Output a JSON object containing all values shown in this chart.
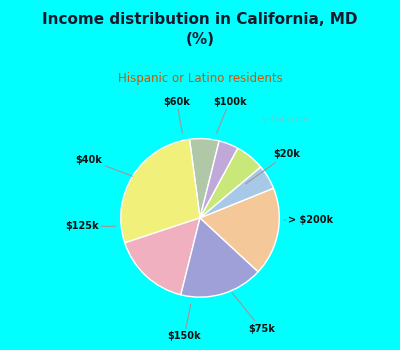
{
  "title": "Income distribution in California, MD\n(%)",
  "subtitle": "Hispanic or Latino residents",
  "labels": [
    "$20k",
    "> $200k",
    "$75k",
    "$150k",
    "$125k",
    "$40k",
    "$60k",
    "$100k"
  ],
  "values": [
    6,
    28,
    16,
    17,
    18,
    5,
    6,
    4
  ],
  "colors": [
    "#b0c8a8",
    "#f0f07a",
    "#f0b0c0",
    "#a0a0d8",
    "#f5c89a",
    "#a8c8e8",
    "#c8e87a",
    "#c0a8d8"
  ],
  "bg_color": "#00ffff",
  "chart_bg_color": "#e8f8f0",
  "title_color": "#1a1a2e",
  "subtitle_color": "#cc5500",
  "startangle": 76,
  "figsize": [
    4.0,
    3.5
  ],
  "dpi": 100,
  "label_data": {
    "$20k": {
      "lpos": [
        0.82,
        0.6
      ],
      "epos": [
        0.4,
        0.3
      ]
    },
    "> $200k": {
      "lpos": [
        1.05,
        -0.02
      ],
      "epos": [
        0.75,
        -0.02
      ]
    },
    "$75k": {
      "lpos": [
        0.58,
        -1.05
      ],
      "epos": [
        0.28,
        -0.68
      ]
    },
    "$150k": {
      "lpos": [
        -0.15,
        -1.12
      ],
      "epos": [
        -0.08,
        -0.78
      ]
    },
    "$125k": {
      "lpos": [
        -1.12,
        -0.08
      ],
      "epos": [
        -0.76,
        -0.08
      ]
    },
    "$40k": {
      "lpos": [
        -1.05,
        0.55
      ],
      "epos": [
        -0.6,
        0.38
      ]
    },
    "$60k": {
      "lpos": [
        -0.22,
        1.1
      ],
      "epos": [
        -0.16,
        0.76
      ]
    },
    "$100k": {
      "lpos": [
        0.28,
        1.1
      ],
      "epos": [
        0.14,
        0.76
      ]
    }
  }
}
